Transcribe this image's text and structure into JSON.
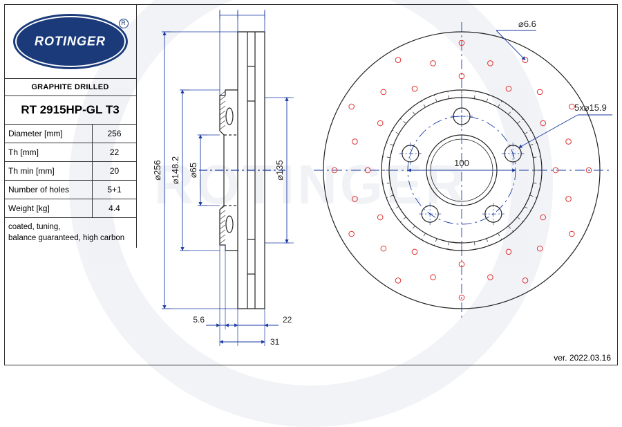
{
  "brand": "ROTINGER",
  "category": "GRAPHITE DRILLED",
  "part_number": "RT 2915HP-GL T3",
  "specs": [
    {
      "label": "Diameter [mm]",
      "value": "256"
    },
    {
      "label": "Th [mm]",
      "value": "22"
    },
    {
      "label": "Th min [mm]",
      "value": "20"
    },
    {
      "label": "Number of holes",
      "value": "5+1"
    },
    {
      "label": "Weight [kg]",
      "value": "4.4"
    }
  ],
  "notes": "coated, tuning,\nbalance guaranteed, high carbon",
  "version": "ver. 2022.03.16",
  "side_view": {
    "outer_d_label": "⌀256",
    "swept_d_label": "⌀148.2",
    "hub_d_label": "⌀65",
    "b": "⌀135",
    "total_width_label": "31",
    "disc_width_label": "22",
    "offset_label": "5.6",
    "dim_color": "#1a3aa0",
    "line_color": "#222222"
  },
  "front_view": {
    "bolt_circle_label": "100",
    "bolt_holes_label": "5x⌀15.9",
    "drill_label": "⌀6.6",
    "drill_color": "#e03030",
    "dim_color": "#1a3aa0",
    "line_color": "#222222",
    "center_line_color": "#1a3aa0",
    "outer_r": 200,
    "swept_inner_r": 116,
    "hat_outer_r": 105,
    "hub_hole_r": 51,
    "bolt_circle_r": 78,
    "bolt_hole_r": 12,
    "drill_rings": [
      136,
      160,
      184
    ],
    "drill_r": 3.8,
    "drill_count_per_ring": 12
  }
}
